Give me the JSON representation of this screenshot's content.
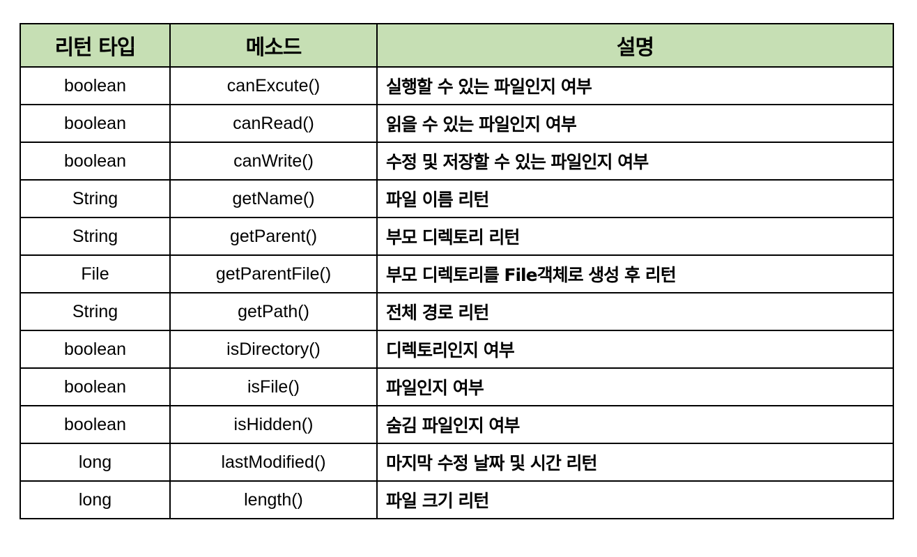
{
  "table": {
    "headers": {
      "return_type": "리턴 타입",
      "method": "메소드",
      "description": "설명"
    },
    "rows": [
      {
        "type": "boolean",
        "method": "canExcute()",
        "desc": "실행할 수 있는 파일인지 여부"
      },
      {
        "type": "boolean",
        "method": "canRead()",
        "desc": "읽을 수 있는 파일인지 여부"
      },
      {
        "type": "boolean",
        "method": "canWrite()",
        "desc": "수정 및 저장할 수 있는 파일인지 여부"
      },
      {
        "type": "String",
        "method": "getName()",
        "desc": "파일 이름 리턴"
      },
      {
        "type": "String",
        "method": "getParent()",
        "desc": "부모 디렉토리 리턴"
      },
      {
        "type": "File",
        "method": "getParentFile()",
        "desc": "부모 디렉토리를 File객체로 생성 후 리턴"
      },
      {
        "type": "String",
        "method": "getPath()",
        "desc": "전체 경로 리턴"
      },
      {
        "type": "boolean",
        "method": "isDirectory()",
        "desc": "디렉토리인지 여부"
      },
      {
        "type": "boolean",
        "method": "isFile()",
        "desc": "파일인지 여부"
      },
      {
        "type": "boolean",
        "method": "isHidden()",
        "desc": "숨김 파일인지 여부"
      },
      {
        "type": "long",
        "method": "lastModified()",
        "desc": "마지막 수정 날짜 및 시간 리턴"
      },
      {
        "type": "long",
        "method": "length()",
        "desc": "파일 크기 리턴"
      }
    ]
  },
  "colors": {
    "header_background": "#c6dfb4",
    "border": "#000000"
  }
}
